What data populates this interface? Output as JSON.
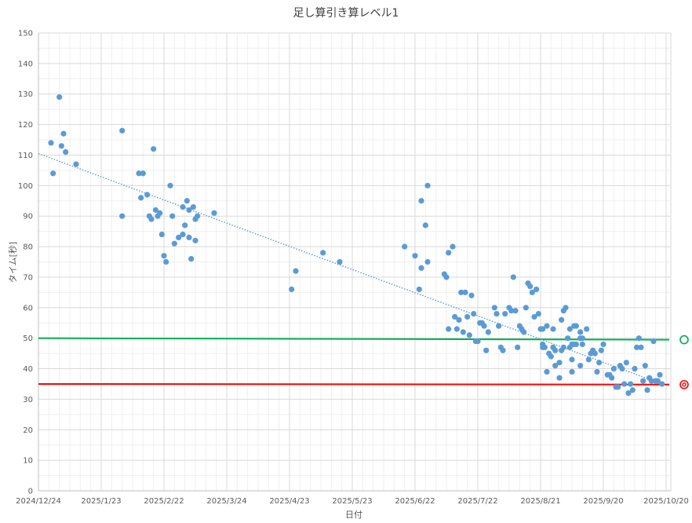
{
  "chart_data": {
    "type": "scatter",
    "title": "足し算引き算レベル1",
    "xlabel": "日付",
    "ylabel": "タイム[秒]",
    "xlim": [
      "2024/12/24",
      "2025/10/20"
    ],
    "ylim": [
      0,
      150
    ],
    "x_ticks": [
      "2024/12/24",
      "2025/1/23",
      "2025/2/22",
      "2025/3/24",
      "2025/4/23",
      "2025/5/23",
      "2025/6/22",
      "2025/7/22",
      "2025/8/21",
      "2025/9/20",
      "2025/10/20"
    ],
    "y_ticks": [
      0,
      10,
      20,
      30,
      40,
      50,
      60,
      70,
      80,
      90,
      100,
      110,
      120,
      130,
      140,
      150
    ],
    "grid": true,
    "legend": "none",
    "colors": {
      "points": "#5b9bd5",
      "trend": "#5b9bd5",
      "target_line": "#00b050",
      "record_line": "#ff0000"
    },
    "points": [
      [
        "2024/12/30",
        114
      ],
      [
        "2024/12/31",
        104
      ],
      [
        "2025/1/3",
        129
      ],
      [
        "2025/1/4",
        113
      ],
      [
        "2025/1/5",
        117
      ],
      [
        "2025/1/6",
        111
      ],
      [
        "2025/1/11",
        107
      ],
      [
        "2025/2/2",
        118
      ],
      [
        "2025/2/2",
        90
      ],
      [
        "2025/2/10",
        104
      ],
      [
        "2025/2/12",
        104
      ],
      [
        "2025/2/11",
        96
      ],
      [
        "2025/2/14",
        97
      ],
      [
        "2025/2/15",
        90
      ],
      [
        "2025/2/16",
        89
      ],
      [
        "2025/2/17",
        112
      ],
      [
        "2025/2/18",
        92
      ],
      [
        "2025/2/19",
        90
      ],
      [
        "2025/2/20",
        91
      ],
      [
        "2025/2/21",
        84
      ],
      [
        "2025/2/22",
        77
      ],
      [
        "2025/2/23",
        75
      ],
      [
        "2025/2/25",
        100
      ],
      [
        "2025/2/26",
        90
      ],
      [
        "2025/2/27",
        81
      ],
      [
        "2025/3/1",
        83
      ],
      [
        "2025/3/3",
        93
      ],
      [
        "2025/3/3",
        84
      ],
      [
        "2025/3/4",
        87
      ],
      [
        "2025/3/5",
        95
      ],
      [
        "2025/3/6",
        92
      ],
      [
        "2025/3/6",
        83
      ],
      [
        "2025/3/7",
        76
      ],
      [
        "2025/3/8",
        93
      ],
      [
        "2025/3/9",
        89
      ],
      [
        "2025/3/10",
        90
      ],
      [
        "2025/3/9",
        82
      ],
      [
        "2025/3/18",
        91
      ],
      [
        "2025/4/24",
        66
      ],
      [
        "2025/4/26",
        72
      ],
      [
        "2025/5/9",
        78
      ],
      [
        "2025/5/17",
        75
      ],
      [
        "2025/6/17",
        80
      ],
      [
        "2025/6/22",
        77
      ],
      [
        "2025/6/25",
        95
      ],
      [
        "2025/6/28",
        100
      ],
      [
        "2025/6/27",
        87
      ],
      [
        "2025/6/28",
        75
      ],
      [
        "2025/6/25",
        73
      ],
      [
        "2025/6/24",
        66
      ],
      [
        "2025/7/6",
        71
      ],
      [
        "2025/7/7",
        70
      ],
      [
        "2025/7/8",
        78
      ],
      [
        "2025/7/10",
        80
      ],
      [
        "2025/7/8",
        53
      ],
      [
        "2025/7/11",
        57
      ],
      [
        "2025/7/12",
        53
      ],
      [
        "2025/7/13",
        56
      ],
      [
        "2025/7/14",
        65
      ],
      [
        "2025/7/16",
        65
      ],
      [
        "2025/7/15",
        52
      ],
      [
        "2025/7/17",
        57
      ],
      [
        "2025/7/18",
        51
      ],
      [
        "2025/7/19",
        64
      ],
      [
        "2025/7/20",
        58
      ],
      [
        "2025/7/21",
        49
      ],
      [
        "2025/7/22",
        49
      ],
      [
        "2025/7/23",
        55
      ],
      [
        "2025/7/24",
        55
      ],
      [
        "2025/7/25",
        54
      ],
      [
        "2025/7/27",
        52
      ],
      [
        "2025/7/26",
        46
      ],
      [
        "2025/7/30",
        60
      ],
      [
        "2025/7/31",
        58
      ],
      [
        "2025/8/1",
        54
      ],
      [
        "2025/8/2",
        47
      ],
      [
        "2025/8/3",
        46
      ],
      [
        "2025/8/4",
        58
      ],
      [
        "2025/8/6",
        60
      ],
      [
        "2025/8/7",
        59
      ],
      [
        "2025/8/8",
        70
      ],
      [
        "2025/8/9",
        59
      ],
      [
        "2025/8/10",
        47
      ],
      [
        "2025/8/11",
        54
      ],
      [
        "2025/8/12",
        53
      ],
      [
        "2025/8/13",
        52
      ],
      [
        "2025/8/14",
        60
      ],
      [
        "2025/8/15",
        68
      ],
      [
        "2025/8/16",
        67
      ],
      [
        "2025/8/17",
        65
      ],
      [
        "2025/8/19",
        66
      ],
      [
        "2025/8/18",
        57
      ],
      [
        "2025/8/20",
        58
      ],
      [
        "2025/8/21",
        53
      ],
      [
        "2025/8/22",
        53
      ],
      [
        "2025/8/24",
        54
      ],
      [
        "2025/8/22",
        48
      ],
      [
        "2025/8/22",
        47
      ],
      [
        "2025/8/23",
        47
      ],
      [
        "2025/8/24",
        39
      ],
      [
        "2025/8/25",
        45
      ],
      [
        "2025/8/26",
        44
      ],
      [
        "2025/8/27",
        53
      ],
      [
        "2025/8/27",
        47
      ],
      [
        "2025/8/28",
        46
      ],
      [
        "2025/8/28",
        41
      ],
      [
        "2025/8/30",
        42
      ],
      [
        "2025/8/30",
        37
      ],
      [
        "2025/8/31",
        56
      ],
      [
        "2025/9/1",
        59
      ],
      [
        "2025/9/2",
        60
      ],
      [
        "2025/8/31",
        46
      ],
      [
        "2025/9/1",
        47
      ],
      [
        "2025/9/3",
        50
      ],
      [
        "2025/9/4",
        53
      ],
      [
        "2025/9/4",
        47
      ],
      [
        "2025/9/5",
        48
      ],
      [
        "2025/9/5",
        43
      ],
      [
        "2025/9/5",
        39
      ],
      [
        "2025/9/6",
        54
      ],
      [
        "2025/9/7",
        54
      ],
      [
        "2025/9/6",
        48
      ],
      [
        "2025/9/7",
        48
      ],
      [
        "2025/9/9",
        52
      ],
      [
        "2025/9/9",
        50
      ],
      [
        "2025/9/10",
        50
      ],
      [
        "2025/9/9",
        41
      ],
      [
        "2025/9/10",
        48
      ],
      [
        "2025/9/12",
        53
      ],
      [
        "2025/9/13",
        43
      ],
      [
        "2025/9/14",
        45
      ],
      [
        "2025/9/15",
        46
      ],
      [
        "2025/9/16",
        45
      ],
      [
        "2025/9/17",
        39
      ],
      [
        "2025/9/18",
        42
      ],
      [
        "2025/9/19",
        46
      ],
      [
        "2025/9/20",
        48
      ],
      [
        "2025/9/22",
        38
      ],
      [
        "2025/9/23",
        38
      ],
      [
        "2025/9/24",
        37
      ],
      [
        "2025/9/25",
        40
      ],
      [
        "2025/9/26",
        34
      ],
      [
        "2025/9/27",
        34
      ],
      [
        "2025/9/28",
        41
      ],
      [
        "2025/9/29",
        40
      ],
      [
        "2025/9/30",
        35
      ],
      [
        "2025/10/1",
        42
      ],
      [
        "2025/10/2",
        32
      ],
      [
        "2025/10/3",
        35
      ],
      [
        "2025/10/4",
        33
      ],
      [
        "2025/10/5",
        40
      ],
      [
        "2025/10/6",
        47
      ],
      [
        "2025/10/8",
        47
      ],
      [
        "2025/10/7",
        50
      ],
      [
        "2025/10/9",
        36
      ],
      [
        "2025/10/10",
        41
      ],
      [
        "2025/10/11",
        33
      ],
      [
        "2025/10/12",
        37
      ],
      [
        "2025/10/13",
        36
      ],
      [
        "2025/10/14",
        49
      ],
      [
        "2025/10/15",
        36
      ],
      [
        "2025/10/16",
        36
      ],
      [
        "2025/10/17",
        38
      ],
      [
        "2025/10/18",
        35
      ]
    ],
    "trendline": {
      "type": "linear",
      "start": [
        "2024/12/24",
        110.5
      ],
      "end": [
        "2025/10/18",
        35
      ]
    },
    "reference_lines": [
      {
        "start": [
          "2024/12/24",
          50
        ],
        "end": [
          "2025/10/20",
          49.5
        ],
        "marker": "circle"
      },
      {
        "start": [
          "2024/12/24",
          35
        ],
        "end": [
          "2025/10/20",
          34.8
        ],
        "marker": "double-circle"
      }
    ]
  }
}
